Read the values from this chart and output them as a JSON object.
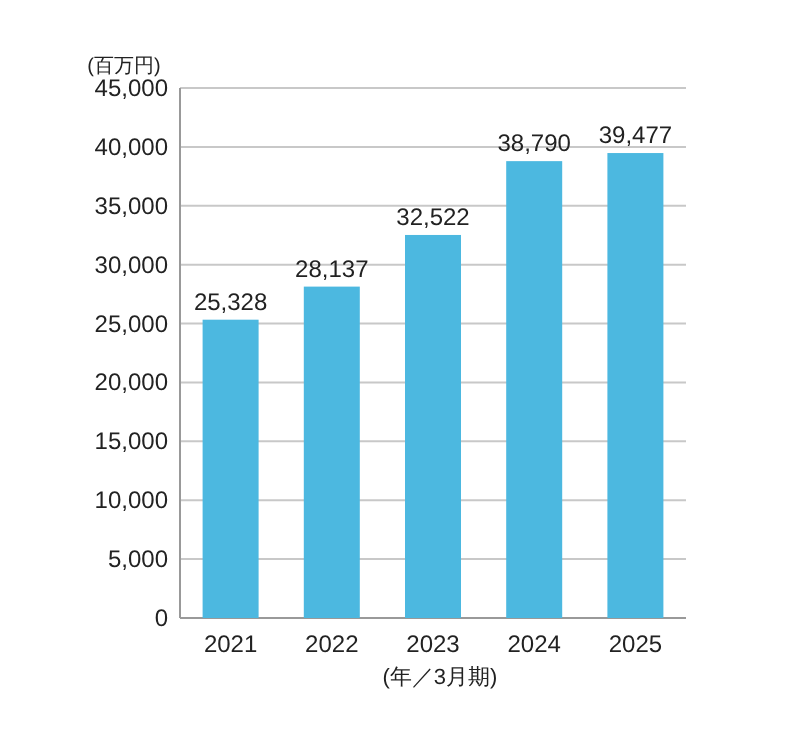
{
  "chart_data": {
    "type": "bar",
    "ylabel": "(百万円)",
    "xlabel": "(年／3月期)",
    "categories": [
      "2021",
      "2022",
      "2023",
      "2024",
      "2025"
    ],
    "values": [
      25328,
      28137,
      32522,
      38790,
      39477
    ],
    "color": "#4cb8e0",
    "ylim": [
      0,
      45000
    ],
    "yticks": [
      0,
      {
        "value": 5000,
        "label": "5,000"
      },
      {
        "value": 10000,
        "label": "10,000"
      },
      {
        "value": 15000,
        "label": "15,000"
      },
      {
        "value": 20000,
        "label": "20,000"
      },
      {
        "value": 25000,
        "label": "25,000"
      },
      {
        "value": 30000,
        "label": "30,000"
      },
      {
        "value": 35000,
        "label": "35,000"
      },
      {
        "value": 40000,
        "label": "40,000"
      },
      {
        "value": 45000,
        "label": "45,000"
      }
    ],
    "grid": "y",
    "value_labels": [
      "25,328",
      "28,137",
      "32,522",
      "38,790",
      "39,477"
    ]
  }
}
